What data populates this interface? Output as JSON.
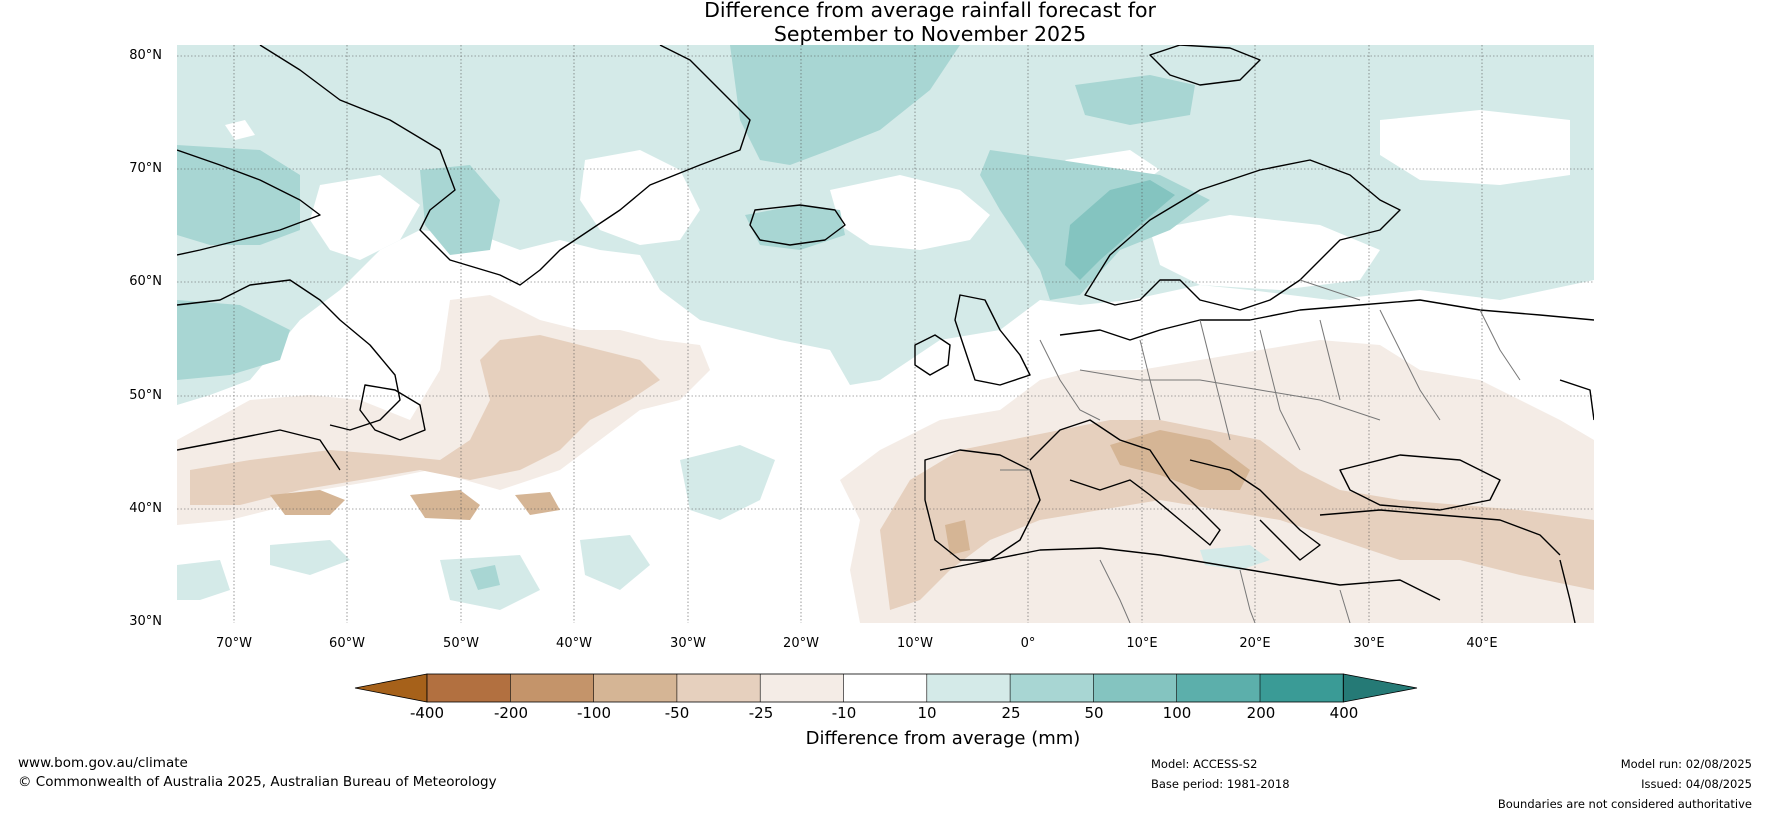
{
  "title_line1": "Difference from average rainfall forecast for",
  "title_line2": "September to November 2025",
  "lat_labels": [
    "80°N",
    "70°N",
    "60°N",
    "50°N",
    "40°N",
    "30°N"
  ],
  "lon_labels": [
    "70°W",
    "60°W",
    "50°W",
    "40°W",
    "30°W",
    "20°W",
    "10°W",
    "0°",
    "10°E",
    "20°E",
    "30°E",
    "40°E"
  ],
  "colorbar": {
    "ticks": [
      "-400",
      "-200",
      "-100",
      "-50",
      "-25",
      "-10",
      "10",
      "25",
      "50",
      "100",
      "200",
      "400"
    ],
    "colors": [
      "#a6611a",
      "#b27040",
      "#c4946a",
      "#d5b595",
      "#e6d0be",
      "#f4ece6",
      "#ffffff",
      "#d4eae8",
      "#a8d6d3",
      "#84c4c0",
      "#5cafab",
      "#3a9b96",
      "#257a76"
    ],
    "label": "Difference from average (mm)"
  },
  "footer": {
    "website": "www.bom.gov.au/climate",
    "copyright": "© Commonwealth of Australia 2025, Australian Bureau of Meteorology",
    "model": "Model: ACCESS-S2",
    "base_period": "Base period: 1981-2018",
    "model_run": "Model run: 02/08/2025",
    "issued": "Issued: 04/08/2025",
    "disclaimer": "Boundaries are not considered authoritative"
  }
}
